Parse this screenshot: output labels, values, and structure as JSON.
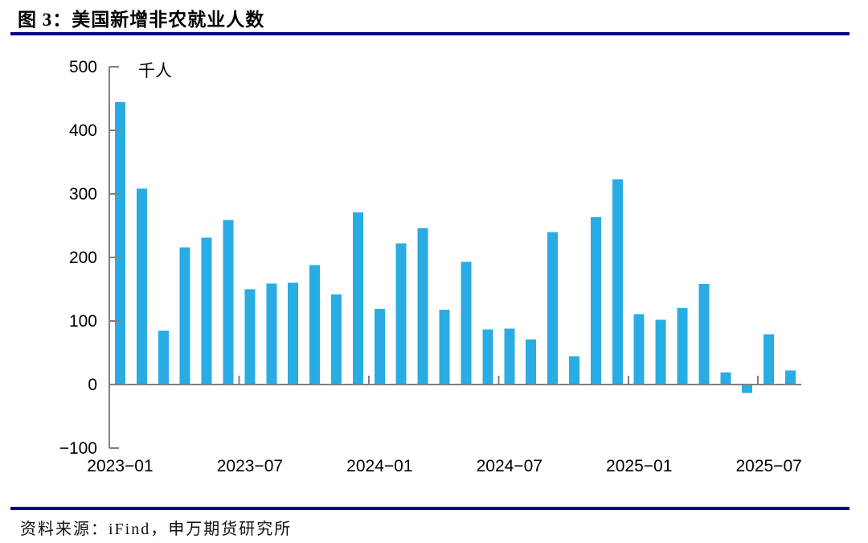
{
  "header": {
    "title": "图 3：美国新增非农就业人数",
    "rule_color": "#00008B"
  },
  "footer": {
    "source": "资料来源：iFind，申万期货研究所",
    "rule_color": "#00008B"
  },
  "chart_data": {
    "type": "bar",
    "title": "美国新增非农就业人数",
    "unit_label": "千人",
    "categories": [
      "2023-01",
      "2023-02",
      "2023-03",
      "2023-04",
      "2023-05",
      "2023-06",
      "2023-07",
      "2023-08",
      "2023-09",
      "2023-10",
      "2023-11",
      "2023-12",
      "2024-01",
      "2024-02",
      "2024-03",
      "2024-04",
      "2024-05",
      "2024-06",
      "2024-07",
      "2024-08",
      "2024-09",
      "2024-10",
      "2024-11",
      "2024-12",
      "2025-01",
      "2025-02",
      "2025-03",
      "2025-04",
      "2025-05",
      "2025-06",
      "2025-07",
      "2025-08"
    ],
    "values": [
      444,
      308,
      85,
      216,
      231,
      259,
      150,
      159,
      160,
      188,
      142,
      271,
      119,
      222,
      246,
      118,
      193,
      87,
      88,
      71,
      240,
      44,
      263,
      323,
      111,
      102,
      120,
      158,
      19,
      -13,
      79,
      22
    ],
    "ylim": [
      -100,
      500
    ],
    "ytick_step": 100,
    "ytick_labels": [
      "500",
      "400",
      "300",
      "200",
      "100",
      "0",
      "−100"
    ],
    "xtick_labels": [
      {
        "index": 0,
        "label": "2023−01"
      },
      {
        "index": 6,
        "label": "2023−07"
      },
      {
        "index": 12,
        "label": "2024−01"
      },
      {
        "index": 18,
        "label": "2024−07"
      },
      {
        "index": 24,
        "label": "2025−01"
      },
      {
        "index": 30,
        "label": "2025−07"
      }
    ],
    "grid": false,
    "legend": "none",
    "bar_color": "#29ACE3",
    "axis_color": "#7f7f7f",
    "label_color": "#000000"
  }
}
